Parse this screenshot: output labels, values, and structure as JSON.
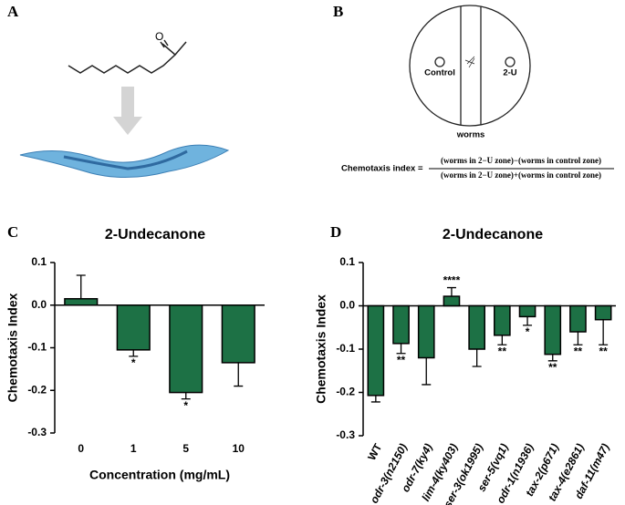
{
  "figure": {
    "panel_a": "A",
    "panel_b": "B",
    "panel_c": "C",
    "panel_d": "D",
    "plate": {
      "control": "Control",
      "test": "2-U",
      "worms": "worms"
    },
    "formula": {
      "lhs": "Chemotaxis index =",
      "numerator": "(worms in 2−U zone)−(worms in control zone)",
      "denominator": "(worms in 2−U zone)+(worms in control zone)"
    }
  },
  "chart_data": [
    {
      "type": "bar",
      "title": "2-Undecanone",
      "x_label": "Concentration (mg/mL)",
      "y_label": "Chemotaxis Index",
      "categories": [
        "0",
        "1",
        "5",
        "10"
      ],
      "values": [
        0.015,
        -0.105,
        -0.205,
        -0.135
      ],
      "errors": [
        0.055,
        0.015,
        0.015,
        0.055
      ],
      "significance": [
        null,
        "*",
        "*",
        null
      ],
      "color": "#1d7145",
      "ylim": [
        -0.3,
        0.1
      ],
      "yticks": [
        0.1,
        {
          "value": 0,
          "label": "0.0"
        },
        -0.1,
        -0.2,
        -0.3
      ]
    },
    {
      "type": "bar",
      "title": "2-Undecanone",
      "y_label": "Chemotaxis Index",
      "categories": [
        "WT",
        "odr-3(n2150)",
        "odr-7(ky4)",
        "lim-4(ky403)",
        "ser-3(ok1995)",
        "ser-5(vq1)",
        "odr-1(n1936)",
        "tax-2(p671)",
        "tax-4(e2861)",
        "daf-11(m47)"
      ],
      "values": [
        -0.207,
        -0.087,
        -0.12,
        0.022,
        -0.1,
        -0.068,
        -0.025,
        -0.112,
        -0.06,
        -0.032
      ],
      "errors": [
        0.015,
        0.023,
        0.062,
        0.02,
        0.04,
        0.022,
        0.02,
        0.015,
        0.03,
        0.058
      ],
      "significance": [
        null,
        "**",
        null,
        "****",
        null,
        "**",
        "*",
        "**",
        "**",
        "**"
      ],
      "color": "#1d7145",
      "ylim": [
        -0.3,
        0.1
      ],
      "yticks": [
        0.1,
        {
          "value": 0,
          "label": "0.0"
        },
        -0.1,
        -0.2,
        -0.3
      ]
    }
  ]
}
